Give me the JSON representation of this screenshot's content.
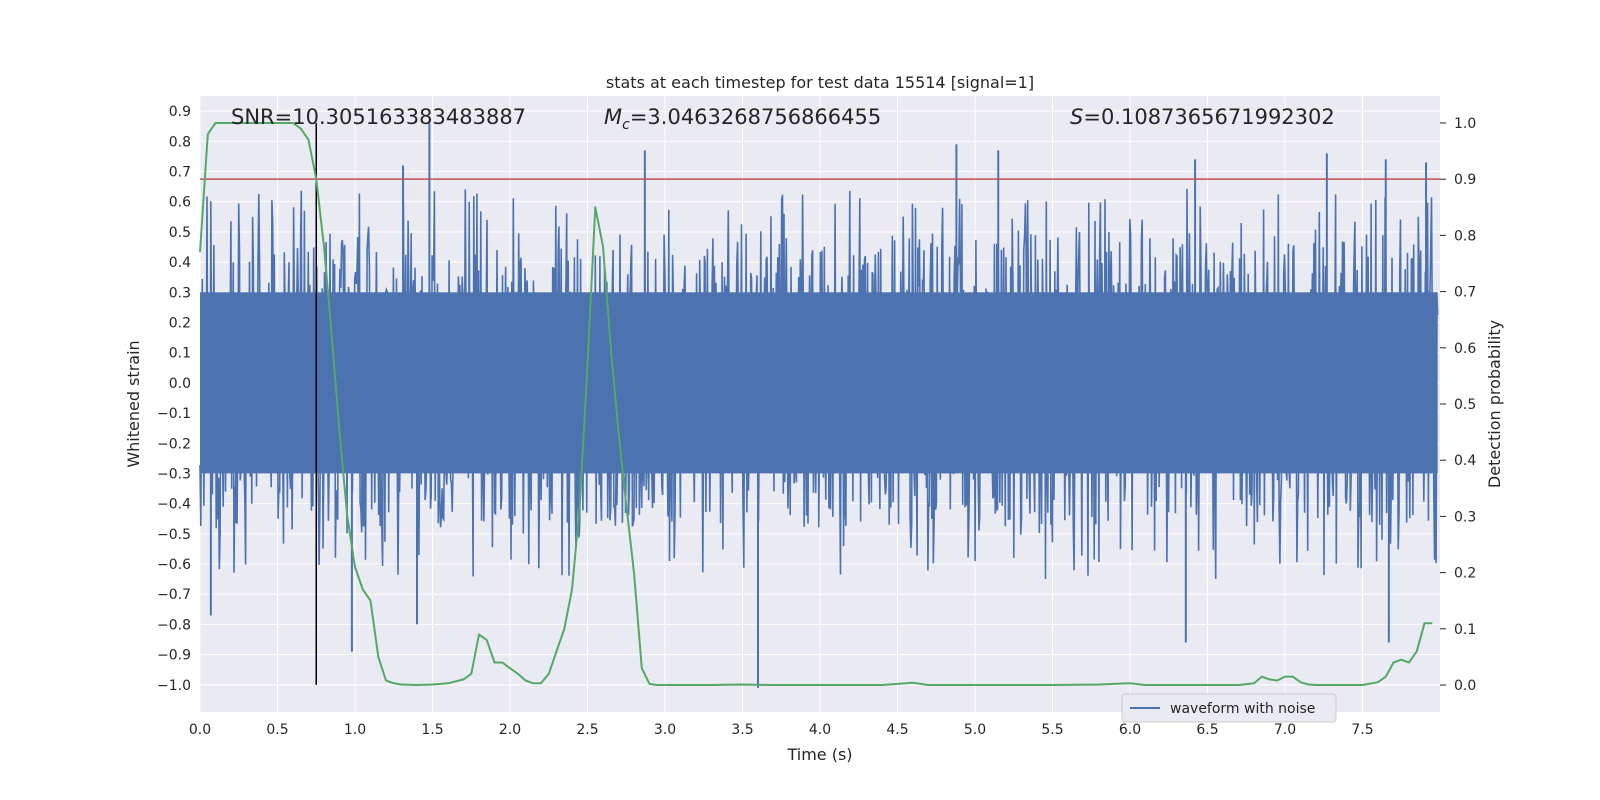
{
  "chart_data": {
    "type": "line",
    "title": "stats at each timestep for test data 15514 [signal=1]",
    "xlabel": "Time (s)",
    "ylabel": "Whitened strain",
    "y2label": "Detection probability",
    "xlim": [
      0.0,
      8.0
    ],
    "ylim": [
      -1.09,
      0.95
    ],
    "y2lim": [
      -0.048,
      1.048
    ],
    "xticks": [
      0.0,
      0.5,
      1.0,
      1.5,
      2.0,
      2.5,
      3.0,
      3.5,
      4.0,
      4.5,
      5.0,
      5.5,
      6.0,
      6.5,
      7.0,
      7.5
    ],
    "xtick_labels": [
      "0.0",
      "0.5",
      "1.0",
      "1.5",
      "2.0",
      "2.5",
      "3.0",
      "3.5",
      "4.0",
      "4.5",
      "5.0",
      "5.5",
      "6.0",
      "6.5",
      "7.0",
      "7.5"
    ],
    "yticks": [
      0.9,
      0.8,
      0.7,
      0.6,
      0.5,
      0.4,
      0.3,
      0.2,
      0.1,
      0.0,
      -0.1,
      -0.2,
      -0.3,
      -0.4,
      -0.5,
      -0.6,
      -0.7,
      -0.8,
      -0.9,
      -1.0
    ],
    "ytick_labels": [
      "0.9",
      "0.8",
      "0.7",
      "0.6",
      "0.5",
      "0.4",
      "0.3",
      "0.2",
      "0.1",
      "0.0",
      "−0.1",
      "−0.2",
      "−0.3",
      "−0.4",
      "−0.5",
      "−0.6",
      "−0.7",
      "−0.8",
      "−0.9",
      "−1.0"
    ],
    "y2ticks": [
      1.0,
      0.9,
      0.8,
      0.7,
      0.6,
      0.5,
      0.4,
      0.3,
      0.2,
      0.1,
      0.0
    ],
    "y2tick_labels": [
      "1.0",
      "0.9",
      "0.8",
      "0.7",
      "0.6",
      "0.5",
      "0.4",
      "0.3",
      "0.2",
      "0.1",
      "0.0"
    ],
    "annotations": {
      "snr": "SNR=10.305163383483887",
      "mc_symbol": "M",
      "mc_sub": "c",
      "mc_value": "=3.0463268756866455",
      "s_symbol": "S",
      "s_value": "=0.1087365671992302"
    },
    "legend": {
      "label": "waveform with noise",
      "position": "lower-right"
    },
    "threshold_line": {
      "y2": 0.9,
      "color": "#c44e52"
    },
    "marker_line": {
      "x": 0.75,
      "y_from": -1.0,
      "y_to": 0.86,
      "color": "#000000"
    },
    "waveform": {
      "color": "#4c72b0",
      "envelope_core": 0.3,
      "notable_peaks": [
        {
          "x": 1.48,
          "y": 0.86
        },
        {
          "x": 1.31,
          "y": 0.72
        },
        {
          "x": 2.87,
          "y": 0.77
        },
        {
          "x": 4.88,
          "y": 0.79
        },
        {
          "x": 5.15,
          "y": 0.77
        },
        {
          "x": 6.42,
          "y": 0.74
        },
        {
          "x": 7.27,
          "y": 0.76
        },
        {
          "x": 7.65,
          "y": 0.74
        },
        {
          "x": 7.91,
          "y": 0.73
        },
        {
          "x": 3.6,
          "y": -1.01
        },
        {
          "x": 0.98,
          "y": -0.89
        },
        {
          "x": 6.36,
          "y": -0.86
        },
        {
          "x": 7.67,
          "y": -0.86
        },
        {
          "x": 1.4,
          "y": -0.8
        },
        {
          "x": 0.07,
          "y": -0.77
        }
      ]
    },
    "series": [
      {
        "name": "Detection probability",
        "axis": "right",
        "color": "#55a868",
        "x": [
          0.0,
          0.05,
          0.1,
          0.15,
          0.2,
          0.3,
          0.4,
          0.5,
          0.6,
          0.65,
          0.7,
          0.75,
          0.8,
          0.85,
          0.9,
          0.95,
          1.0,
          1.05,
          1.1,
          1.15,
          1.2,
          1.25,
          1.3,
          1.4,
          1.5,
          1.6,
          1.7,
          1.75,
          1.8,
          1.85,
          1.9,
          1.95,
          2.0,
          2.05,
          2.1,
          2.15,
          2.2,
          2.25,
          2.3,
          2.35,
          2.4,
          2.45,
          2.5,
          2.55,
          2.6,
          2.65,
          2.7,
          2.75,
          2.8,
          2.85,
          2.9,
          2.95,
          3.0,
          3.05,
          3.1,
          3.15,
          3.2,
          3.3,
          3.5,
          3.7,
          3.8,
          4.0,
          4.2,
          4.4,
          4.6,
          4.7,
          4.8,
          5.0,
          5.2,
          5.5,
          5.8,
          6.0,
          6.1,
          6.3,
          6.5,
          6.7,
          6.8,
          6.85,
          6.9,
          6.95,
          7.0,
          7.05,
          7.1,
          7.15,
          7.2,
          7.3,
          7.4,
          7.5,
          7.6,
          7.65,
          7.7,
          7.75,
          7.8,
          7.85,
          7.9,
          7.95
        ],
        "values": [
          0.77,
          0.98,
          1.0,
          1.0,
          1.0,
          1.0,
          1.0,
          1.0,
          1.0,
          0.99,
          0.97,
          0.9,
          0.78,
          0.62,
          0.45,
          0.3,
          0.21,
          0.17,
          0.15,
          0.05,
          0.008,
          0.003,
          0.001,
          0.0,
          0.001,
          0.003,
          0.01,
          0.02,
          0.09,
          0.08,
          0.04,
          0.04,
          0.03,
          0.02,
          0.008,
          0.003,
          0.003,
          0.02,
          0.06,
          0.1,
          0.17,
          0.32,
          0.57,
          0.85,
          0.78,
          0.6,
          0.45,
          0.32,
          0.2,
          0.03,
          0.002,
          0.0,
          0.0,
          0.0,
          0.0,
          0.0,
          0.0,
          0.0,
          0.001,
          0.0,
          0.0,
          0.0,
          0.0,
          0.0,
          0.004,
          0.0,
          0.0,
          0.0,
          0.0,
          0.0,
          0.001,
          0.003,
          0.0,
          0.0,
          0.0,
          0.0,
          0.003,
          0.015,
          0.01,
          0.008,
          0.015,
          0.015,
          0.005,
          0.001,
          0.0,
          0.0,
          0.0,
          0.0,
          0.005,
          0.015,
          0.04,
          0.045,
          0.04,
          0.06,
          0.11,
          0.11
        ]
      }
    ]
  }
}
